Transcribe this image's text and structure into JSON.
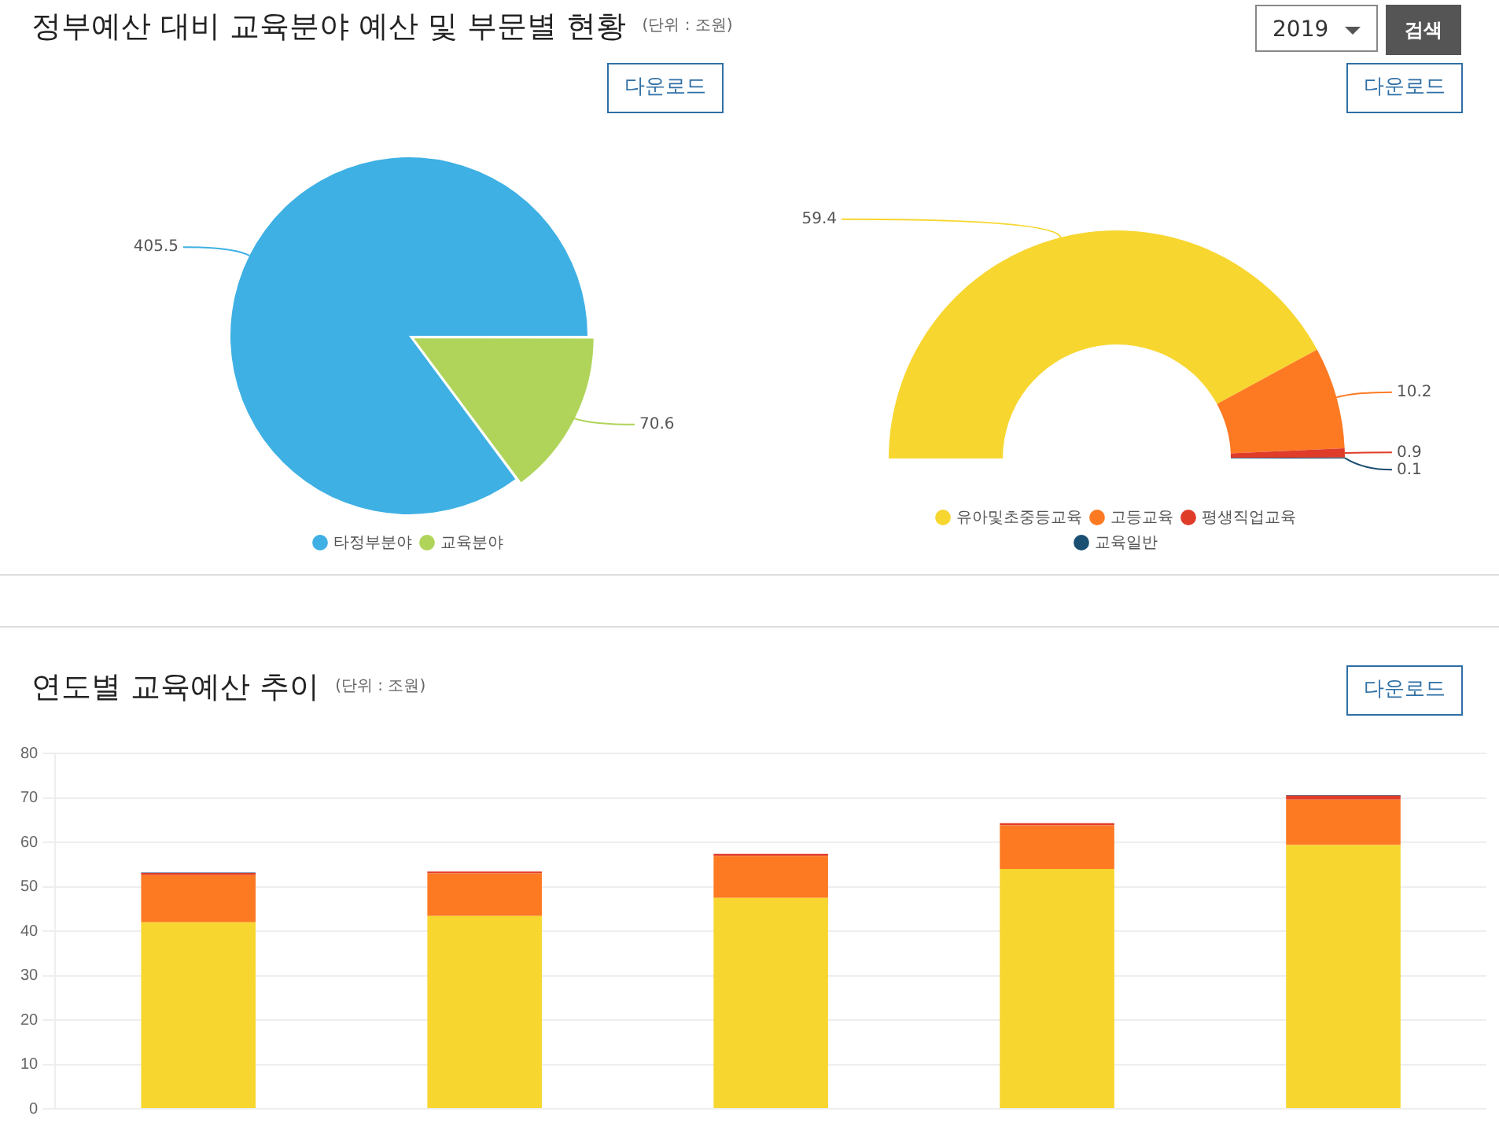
{
  "chart_data": [
    {
      "type": "pie",
      "title": "정부예산 대비 교육분야 예산 및 부문별 현황",
      "subtitle": "(단위 : 조원)",
      "annotations": [
        "2019",
        "검색",
        "다운로드"
      ],
      "categories": [
        "타정부분야",
        "교육분야"
      ],
      "values": [
        405.5,
        70.6
      ],
      "colors": [
        "#3eb0e4",
        "#b0d45a"
      ],
      "data_labels": true,
      "legend": "bottom"
    },
    {
      "type": "donut",
      "annotations": [
        "다운로드"
      ],
      "categories": [
        "유아및초중등교육",
        "고등교육",
        "평생직업교육",
        "교육일반"
      ],
      "values": [
        59.4,
        10.2,
        0.9,
        0.1
      ],
      "colors": [
        "#f7d630",
        "#fd7a23",
        "#e03c2a",
        "#1b4f72"
      ],
      "data_labels": true,
      "legend": "bottom"
    },
    {
      "type": "bar",
      "title": "연도별 교육예산 추이",
      "subtitle": "(단위 : 조원)",
      "annotations": [
        "다운로드"
      ],
      "categories": [
        null,
        null,
        null,
        null,
        null
      ],
      "stacked": true,
      "series": [
        {
          "color": "#f7d630",
          "values": [
            42.0,
            43.4,
            47.5,
            54.0,
            59.4
          ]
        },
        {
          "color": "#fd7a23",
          "values": [
            10.6,
            9.6,
            9.4,
            9.8,
            10.2
          ]
        },
        {
          "color": "#e03c2a",
          "values": [
            0.5,
            0.4,
            0.5,
            0.5,
            0.9
          ]
        },
        {
          "color": "#1b4f72",
          "values": [
            0.1,
            null,
            null,
            null,
            0.1
          ]
        }
      ],
      "ylim": [
        0,
        80
      ],
      "yticks": [
        0,
        10,
        20,
        30,
        40,
        50,
        60,
        70,
        80
      ],
      "grid": "y",
      "legend": false,
      "tick_labels": "y"
    }
  ]
}
